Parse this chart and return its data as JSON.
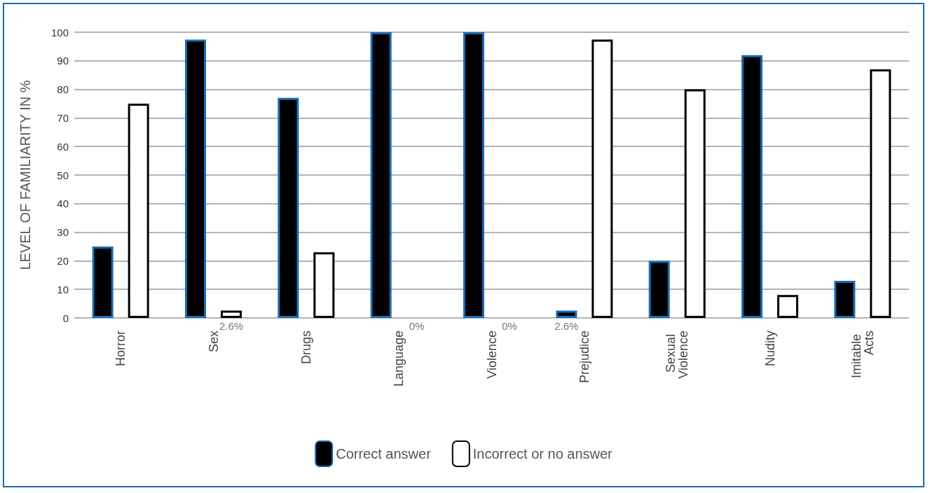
{
  "chart_data": {
    "type": "bar",
    "ylabel": "LEVEL OF FAMILIARITY IN %",
    "categories": [
      "Horror",
      "Sex",
      "Drugs",
      "Language",
      "Violence",
      "Prejudice",
      "Sexual Violence",
      "Nudity",
      "Imitable Acts"
    ],
    "series": [
      {
        "name": "Correct answer",
        "color": "#000000",
        "values": [
          25,
          97.4,
          77,
          100,
          100,
          2.6,
          20,
          92,
          13
        ],
        "value_labels": [
          null,
          null,
          null,
          null,
          null,
          "2.6%",
          null,
          null,
          null
        ]
      },
      {
        "name": "Incorrect or no answer",
        "color": "#ffffff",
        "values": [
          75,
          2.6,
          23,
          0,
          0,
          97.4,
          80,
          8,
          87
        ],
        "value_labels": [
          null,
          "2.6%",
          null,
          "0%",
          "0%",
          null,
          null,
          null,
          null
        ]
      }
    ],
    "ylim": [
      0,
      100
    ],
    "yticks": [
      0,
      10,
      20,
      30,
      40,
      50,
      60,
      70,
      80,
      90,
      100
    ],
    "grid": "y",
    "legend": "bottom"
  }
}
